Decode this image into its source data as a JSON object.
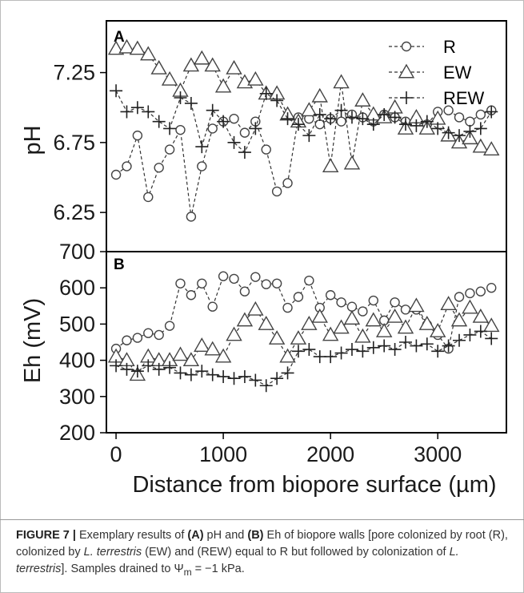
{
  "figure": {
    "caption_figure_label": "FIGURE 7 |",
    "caption_parts": [
      {
        "t": " Exemplary results of ",
        "b": false
      },
      {
        "t": "(A)",
        "b": true
      },
      {
        "t": " pH and ",
        "b": false
      },
      {
        "t": "(B)",
        "b": true
      },
      {
        "t": " Eh of biopore walls [pore colonized by root (R), colonized by ",
        "b": false
      },
      {
        "t": "L. terrestris",
        "i": true
      },
      {
        "t": " (EW) and (REW) equal to R but followed by colonization of ",
        "b": false
      },
      {
        "t": "L. terrestris",
        "i": true
      },
      {
        "t": "]. Samples drained to Ψ",
        "b": false
      },
      {
        "t": "m",
        "sub": true
      },
      {
        "t": " = −1 kPa.",
        "b": false
      }
    ]
  },
  "chart_data": [
    {
      "panel": "A",
      "type": "line",
      "ylabel": "pH",
      "xlabel": "",
      "ylim": [
        5.97,
        7.62
      ],
      "yticks": [
        "6.25",
        "6.75",
        "7.25"
      ],
      "ytick_values": [
        6.25,
        6.75,
        7.25
      ],
      "legend": {
        "placement": "top-right",
        "entries": [
          "R",
          "EW",
          "REW"
        ]
      },
      "series": [
        {
          "name": "R",
          "marker": "circle",
          "x": [
            0,
            100,
            200,
            300,
            400,
            500,
            600,
            700,
            800,
            900,
            1000,
            1100,
            1200,
            1300,
            1400,
            1500,
            1600,
            1700,
            1800,
            1900,
            2000,
            2100,
            2200,
            2300,
            2400,
            2500,
            2600,
            2700,
            2800,
            2900,
            3000,
            3100,
            3200,
            3300,
            3400,
            3500
          ],
          "y": [
            6.52,
            6.58,
            6.8,
            6.36,
            6.57,
            6.7,
            6.84,
            6.22,
            6.58,
            6.85,
            6.9,
            6.92,
            6.82,
            6.9,
            6.7,
            6.4,
            6.46,
            6.93,
            6.92,
            6.88,
            6.92,
            6.9,
            6.95,
            6.93,
            6.9,
            6.95,
            6.93,
            6.9,
            6.92,
            6.88,
            6.97,
            6.98,
            6.93,
            6.9,
            6.95,
            6.98
          ]
        },
        {
          "name": "EW",
          "marker": "triangle",
          "x": [
            0,
            100,
            200,
            300,
            400,
            500,
            600,
            700,
            800,
            900,
            1000,
            1100,
            1200,
            1300,
            1400,
            1500,
            1600,
            1700,
            1800,
            1900,
            2000,
            2100,
            2200,
            2300,
            2400,
            2500,
            2600,
            2700,
            2800,
            2900,
            3000,
            3100,
            3200,
            3300,
            3400,
            3500
          ],
          "y": [
            7.42,
            7.43,
            7.42,
            7.38,
            7.28,
            7.2,
            7.12,
            7.3,
            7.35,
            7.3,
            7.15,
            7.28,
            7.18,
            7.2,
            7.1,
            7.1,
            6.95,
            6.9,
            6.98,
            7.08,
            6.58,
            7.18,
            6.6,
            7.05,
            6.95,
            6.93,
            7.0,
            6.85,
            6.93,
            6.85,
            6.92,
            6.8,
            6.75,
            6.78,
            6.72,
            6.7
          ]
        },
        {
          "name": "REW",
          "marker": "plus",
          "x": [
            0,
            100,
            200,
            300,
            400,
            500,
            600,
            700,
            800,
            900,
            1000,
            1100,
            1200,
            1300,
            1400,
            1500,
            1600,
            1700,
            1800,
            1900,
            2000,
            2100,
            2200,
            2300,
            2400,
            2500,
            2600,
            2700,
            2800,
            2900,
            3000,
            3100,
            3200,
            3300,
            3400,
            3500
          ],
          "y": [
            7.12,
            6.97,
            7.0,
            6.97,
            6.9,
            6.85,
            7.07,
            7.03,
            6.72,
            6.98,
            6.9,
            6.75,
            6.68,
            6.85,
            7.1,
            7.05,
            6.92,
            6.88,
            6.8,
            6.95,
            6.92,
            6.98,
            6.93,
            6.92,
            6.88,
            6.95,
            6.93,
            6.88,
            6.87,
            6.9,
            6.85,
            6.82,
            6.8,
            6.83,
            6.85,
            6.97
          ]
        }
      ]
    },
    {
      "panel": "B",
      "type": "line",
      "ylabel": "Eh (mV)",
      "xlabel": "Distance from biopore surface (µm)",
      "ylim": [
        200,
        700
      ],
      "xlim": [
        -90,
        3640
      ],
      "yticks": [
        "200",
        "300",
        "400",
        "500",
        "600",
        "700"
      ],
      "ytick_values": [
        200,
        300,
        400,
        500,
        600,
        700
      ],
      "xticks": [
        "0",
        "1000",
        "2000",
        "3000"
      ],
      "xtick_values": [
        0,
        1000,
        2000,
        3000
      ],
      "series": [
        {
          "name": "R",
          "marker": "circle",
          "x": [
            0,
            100,
            200,
            300,
            400,
            500,
            600,
            700,
            800,
            900,
            1000,
            1100,
            1200,
            1300,
            1400,
            1500,
            1600,
            1700,
            1800,
            1900,
            2000,
            2100,
            2200,
            2300,
            2400,
            2500,
            2600,
            2700,
            2800,
            2900,
            3000,
            3100,
            3200,
            3300,
            3400,
            3500
          ],
          "y": [
            432,
            455,
            462,
            475,
            470,
            495,
            612,
            580,
            612,
            548,
            632,
            625,
            590,
            630,
            610,
            612,
            545,
            575,
            620,
            545,
            580,
            560,
            548,
            535,
            565,
            510,
            560,
            540,
            540,
            498,
            470,
            432,
            575,
            585,
            590,
            600
          ]
        },
        {
          "name": "EW",
          "marker": "triangle",
          "x": [
            0,
            100,
            200,
            300,
            400,
            500,
            600,
            700,
            800,
            900,
            1000,
            1100,
            1200,
            1300,
            1400,
            1500,
            1600,
            1700,
            1800,
            1900,
            2000,
            2100,
            2200,
            2300,
            2400,
            2500,
            2600,
            2700,
            2800,
            2900,
            3000,
            3100,
            3200,
            3300,
            3400,
            3500
          ],
          "y": [
            410,
            400,
            360,
            410,
            400,
            400,
            415,
            400,
            440,
            430,
            410,
            470,
            510,
            540,
            500,
            460,
            410,
            460,
            500,
            520,
            470,
            490,
            515,
            465,
            510,
            480,
            520,
            490,
            550,
            500,
            480,
            555,
            510,
            545,
            520,
            495
          ]
        },
        {
          "name": "REW",
          "marker": "plus",
          "x": [
            0,
            100,
            200,
            300,
            400,
            500,
            600,
            700,
            800,
            900,
            1000,
            1100,
            1200,
            1300,
            1400,
            1500,
            1600,
            1700,
            1800,
            1900,
            2000,
            2100,
            2200,
            2300,
            2400,
            2500,
            2600,
            2700,
            2800,
            2900,
            3000,
            3100,
            3200,
            3300,
            3400,
            3500
          ],
          "y": [
            385,
            375,
            370,
            385,
            375,
            380,
            365,
            360,
            370,
            360,
            355,
            350,
            355,
            345,
            330,
            350,
            365,
            425,
            430,
            410,
            410,
            420,
            430,
            425,
            435,
            440,
            430,
            450,
            440,
            445,
            425,
            440,
            455,
            470,
            480,
            460
          ]
        }
      ]
    }
  ]
}
